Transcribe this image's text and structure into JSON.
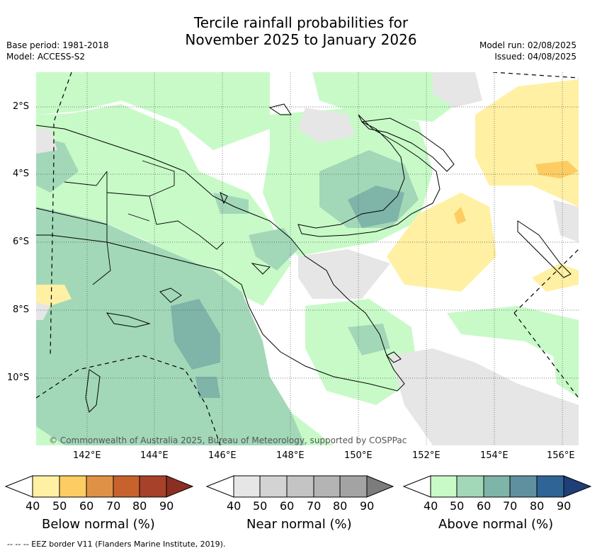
{
  "title_line1": "Tercile rainfall probabilities for",
  "title_line2": "November 2025 to January 2026",
  "base_period": "Base period: 1981-2018",
  "model": "Model: ACCESS-S2",
  "model_run": "Model run: 02/08/2025",
  "issued": "Issued: 04/08/2025",
  "copyright": "© Commonwealth of Australia 2025, Bureau of Meteorology, supported by COSPPac",
  "lat_labels": [
    "2°S",
    "4°S",
    "6°S",
    "8°S",
    "10°S"
  ],
  "lon_labels": [
    "142°E",
    "144°E",
    "146°E",
    "148°E",
    "150°E",
    "152°E",
    "154°E",
    "156°E"
  ],
  "colorbars": [
    {
      "title": "Below normal (%)",
      "ticks": [
        "40",
        "50",
        "60",
        "70",
        "80",
        "90"
      ],
      "colors": [
        "#fff0a3",
        "#fdcd63",
        "#df9245",
        "#c8622d",
        "#a8412a",
        "#8a2f22"
      ]
    },
    {
      "title": "Near normal (%)",
      "ticks": [
        "40",
        "50",
        "60",
        "70",
        "80",
        "90"
      ],
      "colors": [
        "#e6e6e6",
        "#d3d3d3",
        "#c4c4c4",
        "#b4b4b4",
        "#a3a3a3",
        "#7c7c7c"
      ]
    },
    {
      "title": "Above normal (%)",
      "ticks": [
        "40",
        "50",
        "60",
        "70",
        "80",
        "90"
      ],
      "colors": [
        "#c8fac8",
        "#a2d8b8",
        "#7fb4a8",
        "#5f90a0",
        "#2f6496",
        "#1e3f78"
      ]
    }
  ],
  "footnote": "--  --  -- EEZ border V11 (Flanders Marine Institute, 2019)."
}
